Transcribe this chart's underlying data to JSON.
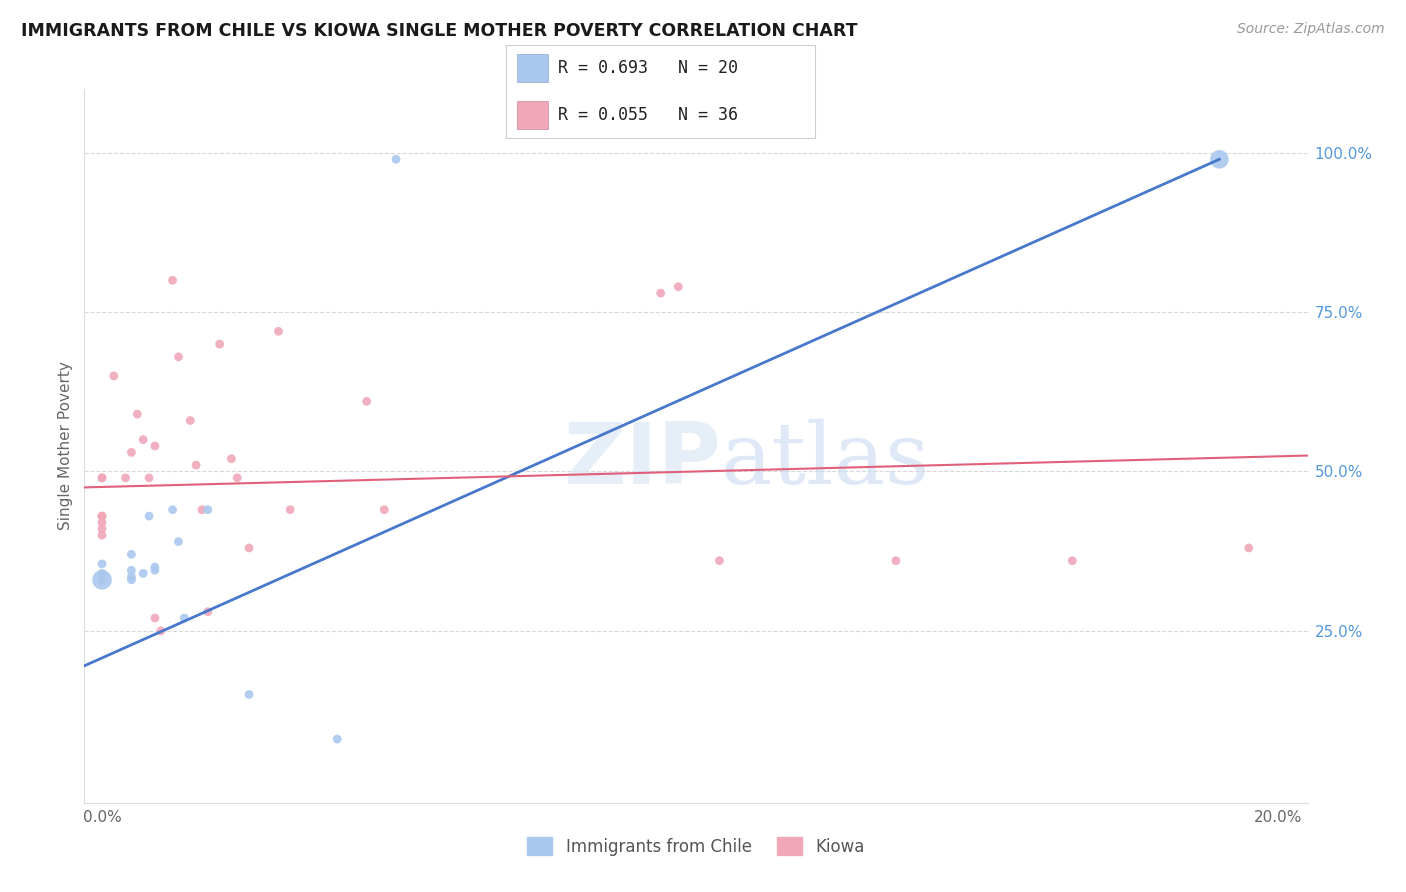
{
  "title": "IMMIGRANTS FROM CHILE VS KIOWA SINGLE MOTHER POVERTY CORRELATION CHART",
  "source": "Source: ZipAtlas.com",
  "ylabel": "Single Mother Poverty",
  "yticks": [
    0.25,
    0.5,
    0.75,
    1.0
  ],
  "ytick_labels": [
    "25.0%",
    "50.0%",
    "75.0%",
    "100.0%"
  ],
  "xticks": [
    0.0,
    4.0,
    8.0,
    12.0,
    16.0,
    20.0
  ],
  "xtick_labels": [
    "0.0%",
    "",
    "",
    "",
    "",
    "20.0%"
  ],
  "watermark_line1": "ZIP",
  "watermark_line2": "atlas",
  "legend_R_blue": "R = 0.693",
  "legend_N_blue": "N = 20",
  "legend_R_pink": "R = 0.055",
  "legend_N_pink": "N = 36",
  "blue_color": "#aac8ee",
  "pink_color": "#f0a8b8",
  "line_blue": "#4878cc",
  "line_pink": "#e0607a",
  "blue_scatter": [
    [
      0.0,
      0.33
    ],
    [
      0.0,
      0.34
    ],
    [
      0.0,
      0.33
    ],
    [
      0.0,
      0.355
    ],
    [
      0.5,
      0.33
    ],
    [
      0.5,
      0.37
    ],
    [
      0.5,
      0.335
    ],
    [
      0.5,
      0.345
    ],
    [
      0.7,
      0.34
    ],
    [
      0.8,
      0.43
    ],
    [
      0.9,
      0.35
    ],
    [
      0.9,
      0.345
    ],
    [
      1.2,
      0.44
    ],
    [
      1.3,
      0.39
    ],
    [
      1.4,
      0.27
    ],
    [
      1.8,
      0.44
    ],
    [
      2.5,
      0.15
    ],
    [
      4.0,
      0.08
    ],
    [
      5.0,
      0.99
    ],
    [
      19.0,
      0.99
    ]
  ],
  "blue_sizes": [
    200,
    40,
    40,
    40,
    40,
    40,
    40,
    40,
    40,
    40,
    40,
    40,
    40,
    40,
    40,
    40,
    40,
    40,
    40,
    180
  ],
  "pink_scatter": [
    [
      0.0,
      0.49
    ],
    [
      0.0,
      0.49
    ],
    [
      0.0,
      0.43
    ],
    [
      0.0,
      0.41
    ],
    [
      0.0,
      0.43
    ],
    [
      0.0,
      0.42
    ],
    [
      0.0,
      0.4
    ],
    [
      0.2,
      0.65
    ],
    [
      0.4,
      0.49
    ],
    [
      0.5,
      0.53
    ],
    [
      0.6,
      0.59
    ],
    [
      0.7,
      0.55
    ],
    [
      0.8,
      0.49
    ],
    [
      0.9,
      0.54
    ],
    [
      0.9,
      0.27
    ],
    [
      1.0,
      0.25
    ],
    [
      1.2,
      0.8
    ],
    [
      1.3,
      0.68
    ],
    [
      1.5,
      0.58
    ],
    [
      1.6,
      0.51
    ],
    [
      1.7,
      0.44
    ],
    [
      1.8,
      0.28
    ],
    [
      2.0,
      0.7
    ],
    [
      2.2,
      0.52
    ],
    [
      2.3,
      0.49
    ],
    [
      2.5,
      0.38
    ],
    [
      3.0,
      0.72
    ],
    [
      3.2,
      0.44
    ],
    [
      4.5,
      0.61
    ],
    [
      4.8,
      0.44
    ],
    [
      9.5,
      0.78
    ],
    [
      9.8,
      0.79
    ],
    [
      10.5,
      0.36
    ],
    [
      13.5,
      0.36
    ],
    [
      16.5,
      0.36
    ],
    [
      19.5,
      0.38
    ]
  ],
  "pink_sizes": [
    40,
    40,
    40,
    40,
    40,
    40,
    40,
    40,
    40,
    40,
    40,
    40,
    40,
    40,
    40,
    40,
    40,
    40,
    40,
    40,
    40,
    40,
    40,
    40,
    40,
    40,
    40,
    40,
    40,
    40,
    40,
    40,
    40,
    40,
    40,
    40
  ],
  "xlim": [
    -0.3,
    20.5
  ],
  "ylim": [
    -0.02,
    1.1
  ],
  "blue_line_x": [
    -0.3,
    19.0
  ],
  "blue_line_y": [
    0.195,
    0.99
  ],
  "pink_line_x": [
    -0.3,
    20.5
  ],
  "pink_line_y": [
    0.475,
    0.525
  ]
}
